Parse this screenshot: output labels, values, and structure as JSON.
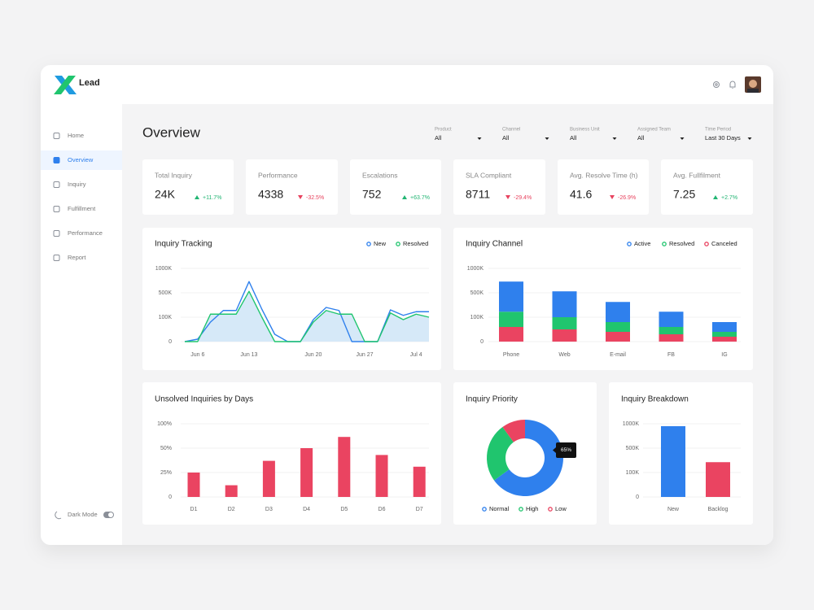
{
  "brand": "Lead",
  "nav": {
    "items": [
      "Home",
      "Overview",
      "Inquiry",
      "Fulfillment",
      "Performance",
      "Report"
    ],
    "active": 1
  },
  "dark_mode": "Dark Mode",
  "title": "Overview",
  "filters": [
    {
      "label": "Product",
      "value": "All"
    },
    {
      "label": "Channel",
      "value": "All"
    },
    {
      "label": "Business Unit",
      "value": "All"
    },
    {
      "label": "Assigned Team",
      "value": "All"
    },
    {
      "label": "Time Period",
      "value": "Last 30 Days"
    }
  ],
  "kpis": [
    {
      "label": "Total Inquiry",
      "value": "24K",
      "change": "+11.7%",
      "trend": "up"
    },
    {
      "label": "Performance",
      "value": "4338",
      "change": "-32.5%",
      "trend": "down"
    },
    {
      "label": "Escalations",
      "value": "752",
      "change": "+63.7%",
      "trend": "up"
    },
    {
      "label": "SLA Compliant",
      "value": "8711",
      "change": "-29.4%",
      "trend": "down"
    },
    {
      "label": "Avg. Resolve Time (h)",
      "value": "41.6",
      "change": "-26.9%",
      "trend": "down"
    },
    {
      "label": "Avg. Fullfilment",
      "value": "7.25",
      "change": "+2.7%",
      "trend": "up"
    }
  ],
  "trend_colors": {
    "up": "#22b573",
    "down": "#e8435f"
  },
  "chart_data": [
    {
      "type": "line",
      "title": "Inquiry Tracking",
      "categories": [
        null,
        "Jun 6",
        null,
        null,
        null,
        "Jun 13",
        null,
        null,
        null,
        null,
        "Jun 20",
        null,
        null,
        null,
        "Jun 27",
        null,
        null,
        null,
        "Jul 4",
        null
      ],
      "series": [
        {
          "name": "New",
          "color": "#2f80ed",
          "values": [
            0,
            10000,
            80000,
            210000,
            210000,
            730000,
            230000,
            30000,
            0,
            0,
            90000,
            260000,
            210000,
            0,
            0,
            0,
            220000,
            130000,
            190000,
            190000
          ]
        },
        {
          "name": "Resolved",
          "color": "#20c56e",
          "fill": "#d6e9f8",
          "values": [
            0,
            0,
            150000,
            150000,
            150000,
            530000,
            100000,
            0,
            0,
            0,
            80000,
            210000,
            150000,
            150000,
            0,
            0,
            170000,
            90000,
            150000,
            100000
          ]
        }
      ],
      "ylim": [
        0,
        1000000
      ],
      "yticks": [
        0,
        {
          "value": 100000,
          "label": "100K"
        },
        {
          "value": 500000,
          "label": "500K"
        },
        {
          "value": 1000000,
          "label": "1000K"
        }
      ],
      "grid": true
    },
    {
      "type": "stacked-bar",
      "title": "Inquiry Channel",
      "categories": [
        "Phone",
        "Web",
        "E-mail",
        "FB",
        "IG"
      ],
      "series": [
        {
          "name": "Active",
          "color": "#2f80ed",
          "values": [
            540000,
            430000,
            270000,
            130000,
            40000
          ]
        },
        {
          "name": "Resolved",
          "color": "#20c56e",
          "values": [
            130000,
            50000,
            40000,
            30000,
            20000
          ]
        },
        {
          "name": "Canceled",
          "color": "#ea4461",
          "values": [
            60000,
            50000,
            40000,
            30000,
            20000
          ]
        }
      ],
      "ylim": [
        0,
        1000000
      ],
      "yticks": [
        0,
        {
          "value": 100000,
          "label": "100K"
        },
        {
          "value": 500000,
          "label": "500K"
        },
        {
          "value": 1000000,
          "label": "1000K"
        }
      ],
      "grid": true
    },
    {
      "type": "bar",
      "title": "Unsolved Inquiries by Days",
      "categories": [
        "D1",
        "D2",
        "D3",
        "D4",
        "D5",
        "D6",
        "D7"
      ],
      "values": [
        25,
        12,
        37,
        50,
        73,
        43,
        31
      ],
      "color": "#ea4461",
      "ylim": [
        0,
        100
      ],
      "yticks": [
        0,
        {
          "value": 25,
          "label": "25%"
        },
        {
          "value": 50,
          "label": "50%"
        },
        {
          "value": 100,
          "label": "100%"
        }
      ],
      "grid": true
    },
    {
      "type": "donut",
      "title": "Inquiry Priority",
      "categories": [
        "Normal",
        "High",
        "Low"
      ],
      "values": [
        65,
        25,
        10
      ],
      "value_labels": [
        "65%",
        null,
        null
      ],
      "colors": [
        "#2f80ed",
        "#20c56e",
        "#ea4461"
      ]
    },
    {
      "type": "bar",
      "title": "Inquiry Breakdown",
      "categories": [
        "New",
        "Backlog"
      ],
      "values": [
        950000,
        270000
      ],
      "colors": [
        "#2f80ed",
        "#ea4461"
      ],
      "ylim": [
        0,
        1000000
      ],
      "yticks": [
        0,
        {
          "value": 100000,
          "label": "100K"
        },
        {
          "value": 500000,
          "label": "500K"
        },
        {
          "value": 1000000,
          "label": "1000K"
        }
      ],
      "grid": true
    }
  ]
}
